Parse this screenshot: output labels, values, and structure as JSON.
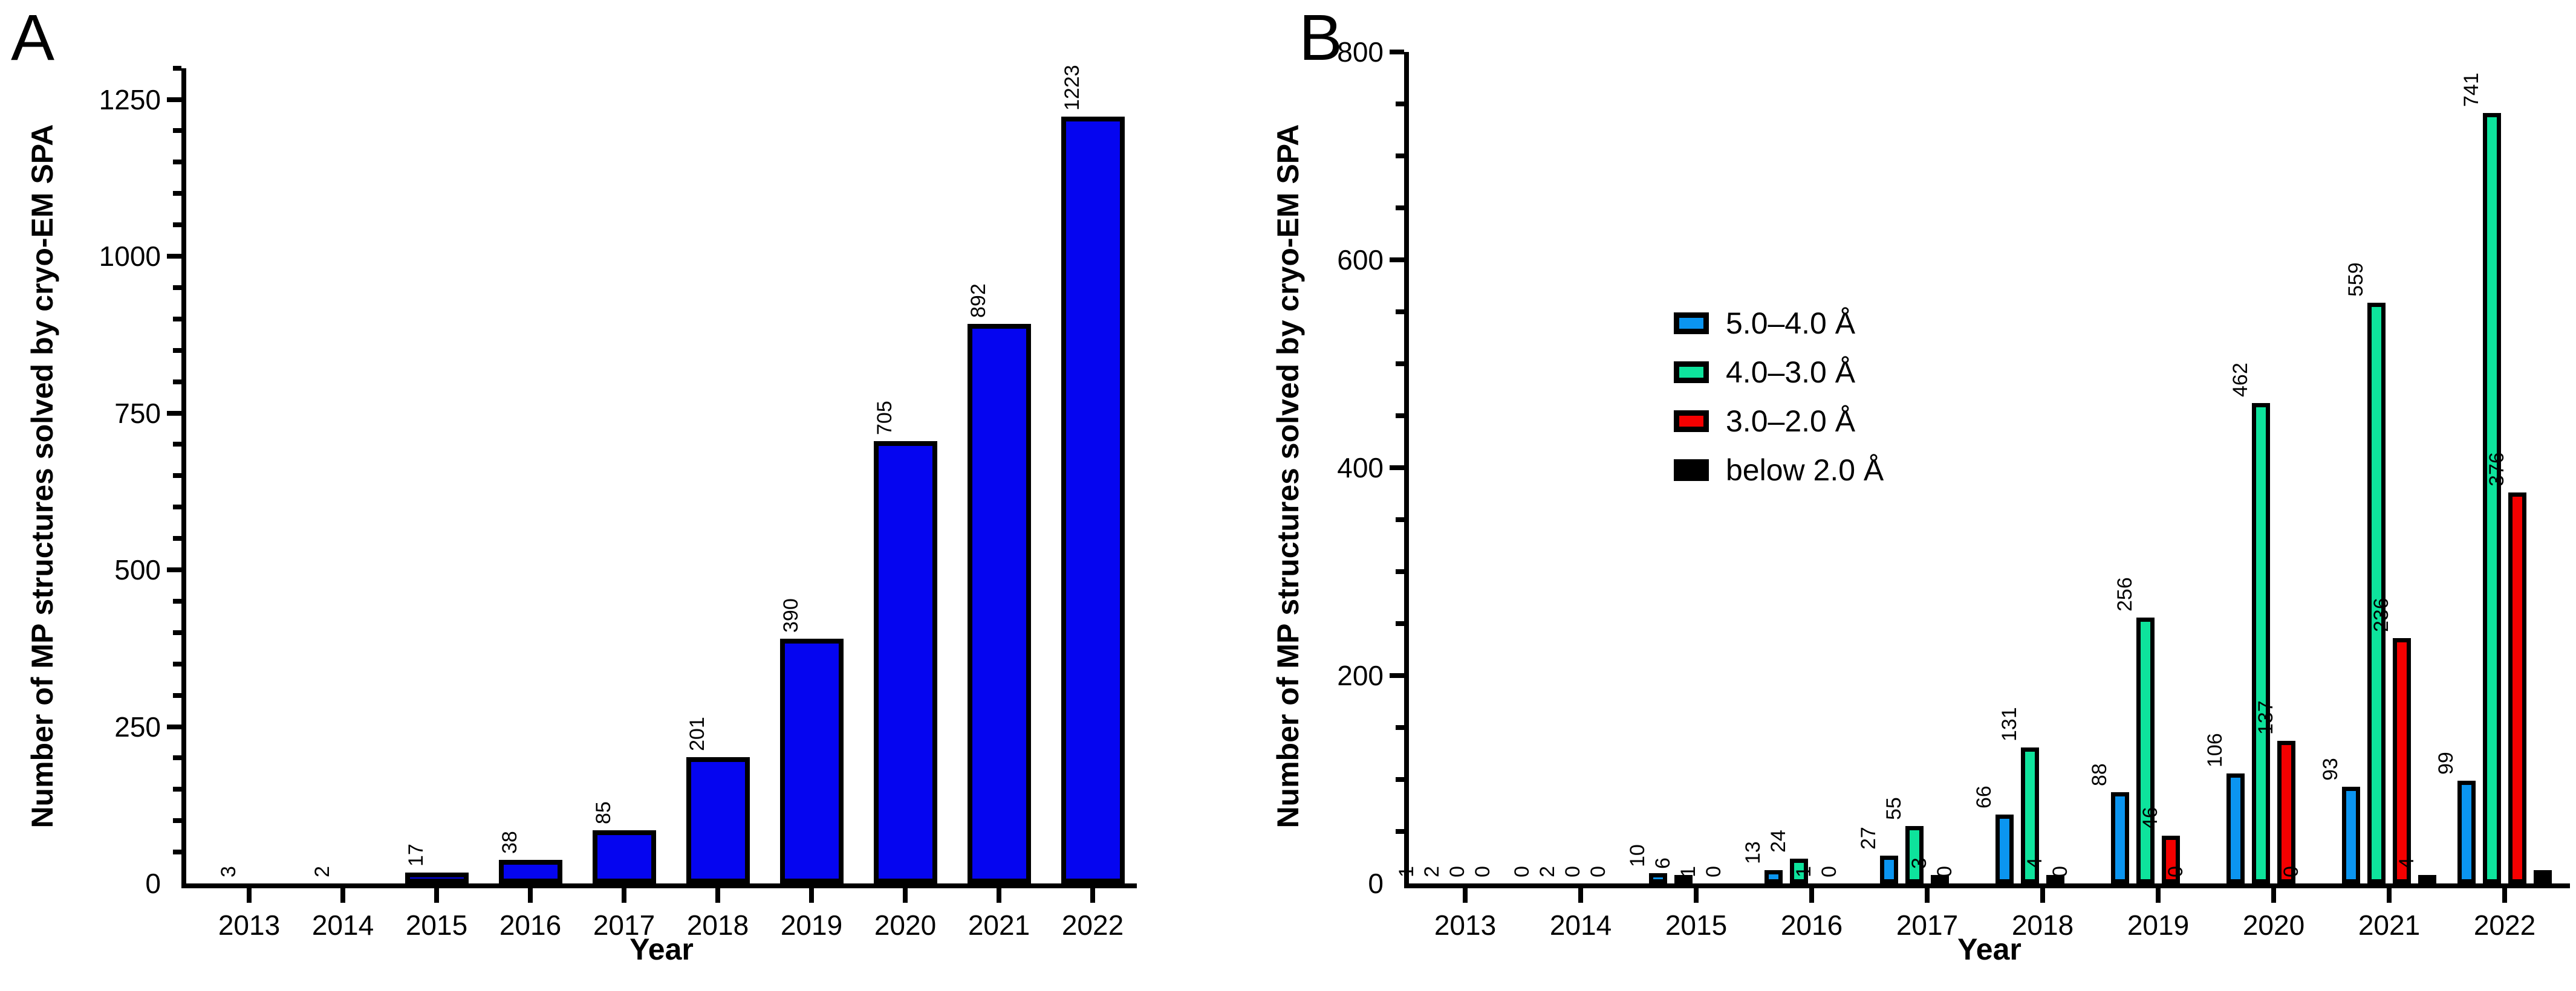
{
  "chart_data": [
    {
      "type": "bar",
      "panel_letter": "A",
      "ylabel": "Number of MP structures solved by cryo-EM SPA",
      "xlabel": "Year",
      "categories": [
        "2013",
        "2014",
        "2015",
        "2016",
        "2017",
        "2018",
        "2019",
        "2020",
        "2021",
        "2022"
      ],
      "series": [
        {
          "name": "MP structures",
          "color": "#0505f0",
          "values": [
            3,
            2,
            17,
            38,
            85,
            201,
            390,
            705,
            892,
            1223
          ],
          "labels": [
            "3",
            "2",
            "17",
            "38",
            "85",
            "201",
            "390",
            "705",
            "892",
            "1223"
          ]
        }
      ],
      "ylim": [
        0,
        1300
      ],
      "ytick_labels": [
        0,
        250,
        500,
        750,
        1000,
        1250
      ],
      "ymajor_interval": 250,
      "yminor_interval": 50,
      "grid": false,
      "legend": null
    },
    {
      "type": "bar",
      "panel_letter": "B",
      "ylabel": "Number of MP structures solved by cryo-EM SPA",
      "xlabel": "Year",
      "categories": [
        "2013",
        "2014",
        "2015",
        "2016",
        "2017",
        "2018",
        "2019",
        "2020",
        "2021",
        "2022"
      ],
      "series": [
        {
          "name": "5.0–4.0 Å",
          "color": "#0b95f0",
          "values": [
            1,
            0,
            10,
            13,
            27,
            66,
            88,
            106,
            93,
            99
          ],
          "labels": [
            "1",
            "0",
            "10",
            "13",
            "27",
            "66",
            "88",
            "106",
            "93",
            "99"
          ]
        },
        {
          "name": "4.0–3.0 Å",
          "color": "#0ee39c",
          "values": [
            2,
            2,
            6,
            24,
            55,
            131,
            256,
            462,
            559,
            741
          ],
          "labels": [
            "2",
            "2",
            "6",
            "24",
            "55",
            "131",
            "256",
            "462",
            "559",
            "741"
          ]
        },
        {
          "name": "3.0–2.0 Å",
          "color": "#f50000",
          "values": [
            0,
            0,
            1,
            1,
            3,
            4,
            46,
            137,
            236,
            376
          ],
          "labels": [
            "0",
            "0",
            "1",
            "1",
            "3",
            "4",
            "46",
            "137",
            "236",
            "376"
          ]
        },
        {
          "name": "below 2.0 Å",
          "color": "#000000",
          "values": [
            0,
            0,
            0,
            0,
            0,
            0,
            0,
            0,
            4,
            13
          ],
          "labels": [
            "0",
            "0",
            "0",
            "0",
            "0",
            "0",
            "0",
            "0",
            "4",
            ""
          ]
        }
      ],
      "ylim": [
        0,
        800
      ],
      "ytick_labels": [
        0,
        200,
        400,
        600,
        800
      ],
      "ymajor_interval": 200,
      "yminor_interval": 50,
      "grid": false,
      "legend": {
        "position": "upper-left-of-plot",
        "entries": [
          "5.0–4.0 Å",
          "4.0–3.0 Å",
          "3.0–2.0 Å",
          "below 2.0 Å"
        ]
      }
    }
  ],
  "colors": {
    "panel_a_bar": "#0505f0",
    "blue_series": "#0b95f0",
    "green_series": "#0ee39c",
    "red_series": "#f50000",
    "black_series": "#000000",
    "axis": "#000000",
    "background": "#ffffff"
  }
}
